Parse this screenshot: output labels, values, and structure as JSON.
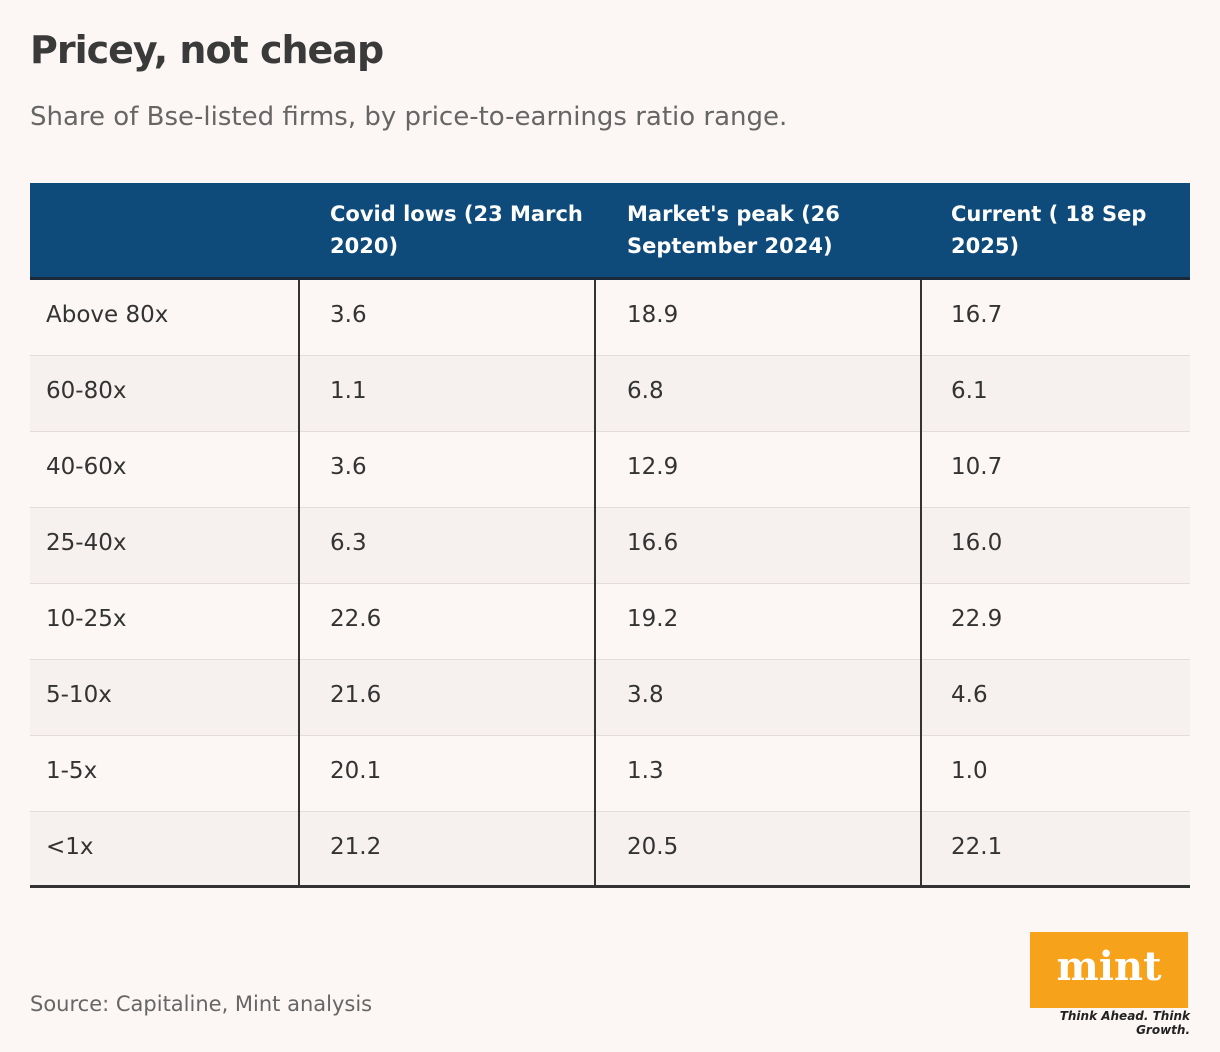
{
  "header": {
    "title": "Pricey, not cheap",
    "subtitle": "Share of Bse-listed firms, by price-to-earnings ratio range."
  },
  "table": {
    "columns": [
      "",
      "Covid lows (23 March 2020)",
      "Market's peak (26 September 2024)",
      "Current ( 18 Sep 2025)"
    ],
    "rows": [
      [
        "Above 80x",
        "3.6",
        "18.9",
        "16.7"
      ],
      [
        "60-80x",
        "1.1",
        "6.8",
        "6.1"
      ],
      [
        "40-60x",
        "3.6",
        "12.9",
        "10.7"
      ],
      [
        "25-40x",
        "6.3",
        "16.6",
        "16.0"
      ],
      [
        "10-25x",
        "22.6",
        "19.2",
        "22.9"
      ],
      [
        "5-10x",
        "21.6",
        "3.8",
        "4.6"
      ],
      [
        "1-5x",
        "20.1",
        "1.3",
        "1.0"
      ],
      [
        "<1x",
        "21.2",
        "20.5",
        "22.1"
      ]
    ]
  },
  "footer": {
    "source": "Source: Capitaline, Mint analysis"
  },
  "logo": {
    "name": "mint",
    "tagline": "Think Ahead. Think Growth."
  }
}
